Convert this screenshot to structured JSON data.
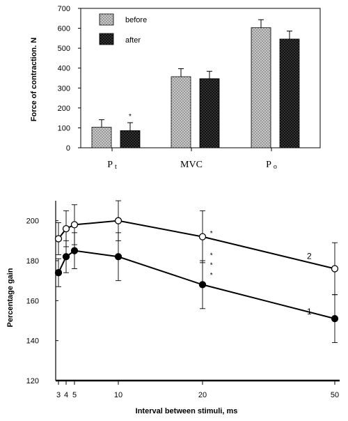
{
  "chart_data": [
    {
      "type": "bar",
      "ylabel": "Force of contraction.  N",
      "ylim": [
        0,
        700
      ],
      "yticks": [
        0,
        100,
        200,
        300,
        400,
        500,
        600,
        700
      ],
      "categories": [
        {
          "main": "P",
          "sub": "t"
        },
        {
          "main": "MVC",
          "sub": ""
        },
        {
          "main": "P",
          "sub": "o"
        }
      ],
      "series": [
        {
          "name": "before",
          "values": [
            103,
            357,
            603
          ],
          "errors": [
            38,
            40,
            40
          ]
        },
        {
          "name": "after",
          "values": [
            86,
            347,
            546
          ],
          "errors": [
            40,
            37,
            40
          ]
        }
      ],
      "annotations": [
        {
          "text": "*",
          "category_index": 0,
          "series_index": 1
        }
      ],
      "legend_position": "top-left",
      "grid": false
    },
    {
      "type": "line",
      "xlabel": "Interval between stimuli, ms",
      "ylabel": "Percentage  gain",
      "ylim": [
        120,
        210
      ],
      "yticks": [
        120,
        140,
        160,
        180,
        200
      ],
      "xticks": [
        3,
        4,
        5,
        10,
        20,
        50
      ],
      "series": [
        {
          "name": "1",
          "marker": "filled",
          "x": [
            3,
            4,
            5,
            10,
            20,
            50
          ],
          "y": [
            174,
            182,
            185,
            182,
            168,
            151
          ],
          "err": [
            7,
            8,
            9,
            12,
            12,
            12
          ]
        },
        {
          "name": "2",
          "marker": "open",
          "x": [
            3,
            4,
            5,
            10,
            20,
            50
          ],
          "y": [
            191,
            196,
            198,
            200,
            192,
            176
          ],
          "err": [
            8,
            9,
            10,
            10,
            13,
            13
          ]
        }
      ],
      "annotations": [
        {
          "text": "*",
          "x": 22,
          "y": 194
        },
        {
          "text": "*",
          "x": 22,
          "y": 183
        },
        {
          "text": "*",
          "x": 22,
          "y": 178
        },
        {
          "text": "*",
          "x": 22,
          "y": 173
        }
      ],
      "grid": false
    }
  ]
}
